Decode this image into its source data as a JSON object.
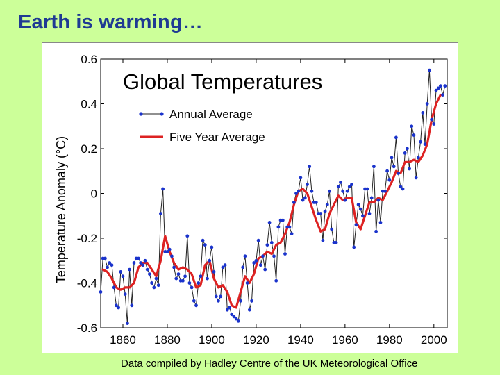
{
  "slide": {
    "title": "Earth is warming…",
    "credit": "Data compiled by Hadley Centre of the UK Meteorological Office"
  },
  "chart_data": {
    "type": "line",
    "title": "Global Temperatures",
    "xlabel": "",
    "ylabel": "Temperature Anomaly (°C)",
    "xlim": [
      1850,
      2006
    ],
    "ylim": [
      -0.6,
      0.6
    ],
    "xticks": [
      1860,
      1880,
      1900,
      1920,
      1940,
      1960,
      1980,
      2000
    ],
    "yticks": [
      -0.6,
      -0.4,
      -0.2,
      0,
      0.2,
      0.4,
      0.6
    ],
    "ytick_labels": [
      "-0.6",
      "-0.4",
      "-0.2",
      "0",
      "0.2",
      "0.4",
      "0.6"
    ],
    "grid": false,
    "legend": "top-left",
    "colors": {
      "annual": "#1a33cc",
      "line": "#222222",
      "five_year": "#dd2222"
    },
    "series": [
      {
        "name": "Annual Average",
        "x": [
          1850,
          1851,
          1852,
          1853,
          1854,
          1855,
          1856,
          1857,
          1858,
          1859,
          1860,
          1861,
          1862,
          1863,
          1864,
          1865,
          1866,
          1867,
          1868,
          1869,
          1870,
          1871,
          1872,
          1873,
          1874,
          1875,
          1876,
          1877,
          1878,
          1879,
          1880,
          1881,
          1882,
          1883,
          1884,
          1885,
          1886,
          1887,
          1888,
          1889,
          1890,
          1891,
          1892,
          1893,
          1894,
          1895,
          1896,
          1897,
          1898,
          1899,
          1900,
          1901,
          1902,
          1903,
          1904,
          1905,
          1906,
          1907,
          1908,
          1909,
          1910,
          1911,
          1912,
          1913,
          1914,
          1915,
          1916,
          1917,
          1918,
          1919,
          1920,
          1921,
          1922,
          1923,
          1924,
          1925,
          1926,
          1927,
          1928,
          1929,
          1930,
          1931,
          1932,
          1933,
          1934,
          1935,
          1936,
          1937,
          1938,
          1939,
          1940,
          1941,
          1942,
          1943,
          1944,
          1945,
          1946,
          1947,
          1948,
          1949,
          1950,
          1951,
          1952,
          1953,
          1954,
          1955,
          1956,
          1957,
          1958,
          1959,
          1960,
          1961,
          1962,
          1963,
          1964,
          1965,
          1966,
          1967,
          1968,
          1969,
          1970,
          1971,
          1972,
          1973,
          1974,
          1975,
          1976,
          1977,
          1978,
          1979,
          1980,
          1981,
          1982,
          1983,
          1984,
          1985,
          1986,
          1987,
          1988,
          1989,
          1990,
          1991,
          1992,
          1993,
          1994,
          1995,
          1996,
          1997,
          1998,
          1999,
          2000,
          2001,
          2002,
          2003,
          2004,
          2005
        ],
        "values": [
          -0.44,
          -0.29,
          -0.29,
          -0.33,
          -0.31,
          -0.32,
          -0.42,
          -0.5,
          -0.51,
          -0.35,
          -0.37,
          -0.45,
          -0.58,
          -0.34,
          -0.5,
          -0.31,
          -0.29,
          -0.29,
          -0.31,
          -0.32,
          -0.3,
          -0.34,
          -0.36,
          -0.4,
          -0.42,
          -0.38,
          -0.41,
          -0.09,
          0.02,
          -0.26,
          -0.26,
          -0.25,
          -0.28,
          -0.33,
          -0.38,
          -0.36,
          -0.39,
          -0.39,
          -0.37,
          -0.19,
          -0.4,
          -0.42,
          -0.48,
          -0.5,
          -0.4,
          -0.37,
          -0.21,
          -0.23,
          -0.38,
          -0.3,
          -0.24,
          -0.35,
          -0.46,
          -0.48,
          -0.46,
          -0.33,
          -0.32,
          -0.52,
          -0.51,
          -0.54,
          -0.55,
          -0.56,
          -0.57,
          -0.48,
          -0.33,
          -0.28,
          -0.4,
          -0.52,
          -0.48,
          -0.31,
          -0.3,
          -0.21,
          -0.32,
          -0.28,
          -0.34,
          -0.23,
          -0.13,
          -0.22,
          -0.28,
          -0.39,
          -0.15,
          -0.12,
          -0.12,
          -0.27,
          -0.15,
          -0.15,
          -0.18,
          -0.04,
          0.0,
          0.01,
          0.07,
          -0.03,
          -0.02,
          0.04,
          0.12,
          0.01,
          -0.04,
          -0.04,
          -0.09,
          -0.09,
          -0.21,
          -0.08,
          -0.05,
          0.01,
          -0.16,
          -0.22,
          -0.22,
          0.03,
          0.05,
          0.01,
          -0.03,
          0.01,
          0.03,
          0.04,
          -0.24,
          -0.14,
          -0.05,
          -0.07,
          -0.1,
          0.02,
          0.02,
          -0.09,
          -0.02,
          0.12,
          -0.17,
          -0.03,
          -0.13,
          0.01,
          0.01,
          0.1,
          0.06,
          0.16,
          0.12,
          0.25,
          0.09,
          0.03,
          0.02,
          0.18,
          0.2,
          0.11,
          0.3,
          0.26,
          0.07,
          0.16,
          0.23,
          0.36,
          0.22,
          0.4,
          0.55,
          0.33,
          0.31,
          0.46,
          0.47,
          0.48,
          0.44,
          0.48
        ]
      },
      {
        "name": "Five Year Average",
        "x": [
          1851,
          1853,
          1855,
          1857,
          1859,
          1861,
          1863,
          1865,
          1867,
          1869,
          1871,
          1873,
          1875,
          1877,
          1879,
          1881,
          1883,
          1885,
          1887,
          1889,
          1891,
          1893,
          1895,
          1897,
          1899,
          1901,
          1903,
          1905,
          1907,
          1909,
          1911,
          1913,
          1915,
          1917,
          1919,
          1921,
          1923,
          1925,
          1927,
          1929,
          1931,
          1933,
          1935,
          1937,
          1939,
          1941,
          1943,
          1945,
          1947,
          1949,
          1951,
          1953,
          1955,
          1957,
          1959,
          1961,
          1963,
          1965,
          1967,
          1969,
          1971,
          1973,
          1975,
          1977,
          1979,
          1981,
          1983,
          1985,
          1987,
          1989,
          1991,
          1993,
          1995,
          1997,
          1999,
          2001,
          2003
        ],
        "values": [
          -0.34,
          -0.35,
          -0.38,
          -0.42,
          -0.43,
          -0.42,
          -0.42,
          -0.4,
          -0.33,
          -0.31,
          -0.31,
          -0.34,
          -0.37,
          -0.3,
          -0.19,
          -0.26,
          -0.31,
          -0.34,
          -0.33,
          -0.34,
          -0.36,
          -0.42,
          -0.41,
          -0.32,
          -0.3,
          -0.38,
          -0.42,
          -0.41,
          -0.44,
          -0.5,
          -0.51,
          -0.44,
          -0.37,
          -0.4,
          -0.36,
          -0.29,
          -0.28,
          -0.26,
          -0.27,
          -0.23,
          -0.22,
          -0.18,
          -0.13,
          -0.05,
          0.01,
          0.02,
          0.0,
          -0.06,
          -0.12,
          -0.17,
          -0.16,
          -0.09,
          -0.05,
          -0.01,
          -0.03,
          -0.02,
          -0.02,
          -0.13,
          -0.16,
          -0.1,
          -0.04,
          -0.04,
          -0.02,
          -0.03,
          0.01,
          0.05,
          0.1,
          0.09,
          0.14,
          0.14,
          0.15,
          0.14,
          0.17,
          0.22,
          0.33,
          0.4,
          0.44
        ]
      }
    ]
  }
}
